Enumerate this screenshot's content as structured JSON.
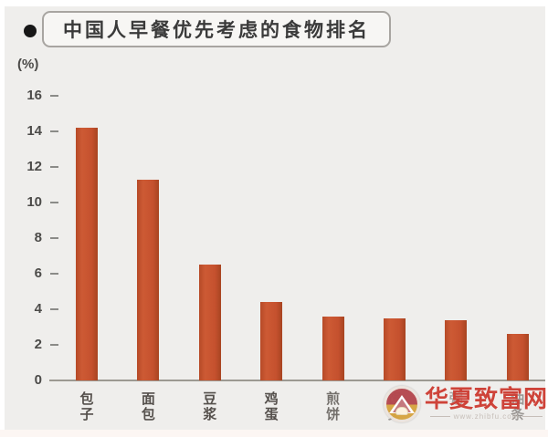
{
  "header": {
    "bullet_glyph": "●",
    "title": "中国人早餐优先考虑的食物排名"
  },
  "chart_data": {
    "type": "bar",
    "title": "中国人早餐优先考虑的食物排名",
    "unit_label": "(%)",
    "categories": [
      "包子",
      "面包",
      "豆浆",
      "鸡蛋",
      "煎饼",
      "馒头",
      "粥",
      "油条"
    ],
    "values": [
      14.2,
      11.3,
      6.5,
      4.4,
      3.6,
      3.5,
      3.4,
      2.6
    ],
    "xlabel": "",
    "ylabel": "(%)",
    "ylim": [
      0,
      16
    ],
    "yticks": [
      0,
      2,
      4,
      6,
      8,
      10,
      12,
      14,
      16
    ],
    "grid": false,
    "legend": false,
    "bar_color": "#c5512e"
  },
  "watermark": {
    "site_name": "华夏致富网",
    "url": "www.zhibfu.com",
    "logo": "mountain-sun-logo",
    "text_color": "#cd3a30"
  }
}
